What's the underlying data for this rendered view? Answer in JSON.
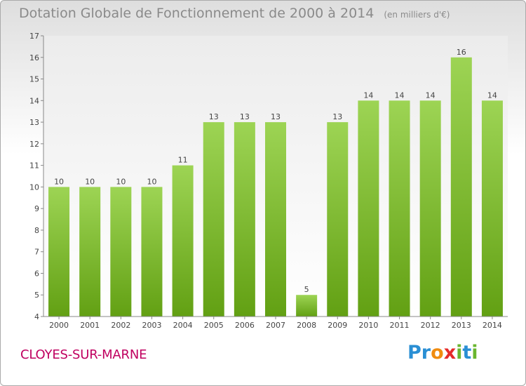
{
  "title": "Dotation Globale de Fonctionnement de 2000 à 2014",
  "subtitle": "(en milliers d'€)",
  "location": "CLOYES-SUR-MARNE",
  "logo": {
    "letters": [
      "P",
      "r",
      "o",
      "x",
      "i",
      "t",
      "i"
    ]
  },
  "colors": {
    "bar_light": "#9dd454",
    "bar_dark": "#62a013",
    "logo": [
      "#2a8fd4",
      "#2a8fd4",
      "#f08c10",
      "#e52a2a",
      "#6ab62f",
      "#2a8fd4",
      "#6ab62f"
    ]
  },
  "chart_data": {
    "type": "bar",
    "categories": [
      "2000",
      "2001",
      "2002",
      "2003",
      "2004",
      "2005",
      "2006",
      "2007",
      "2008",
      "2009",
      "2010",
      "2011",
      "2012",
      "2013",
      "2014"
    ],
    "values": [
      10,
      10,
      10,
      10,
      11,
      13,
      13,
      13,
      5,
      13,
      14,
      14,
      14,
      16,
      14
    ],
    "ylim": [
      4,
      17
    ],
    "yticks": [
      4,
      5,
      6,
      7,
      8,
      9,
      10,
      11,
      12,
      13,
      14,
      15,
      16,
      17
    ],
    "grid": false,
    "legend": "none"
  }
}
